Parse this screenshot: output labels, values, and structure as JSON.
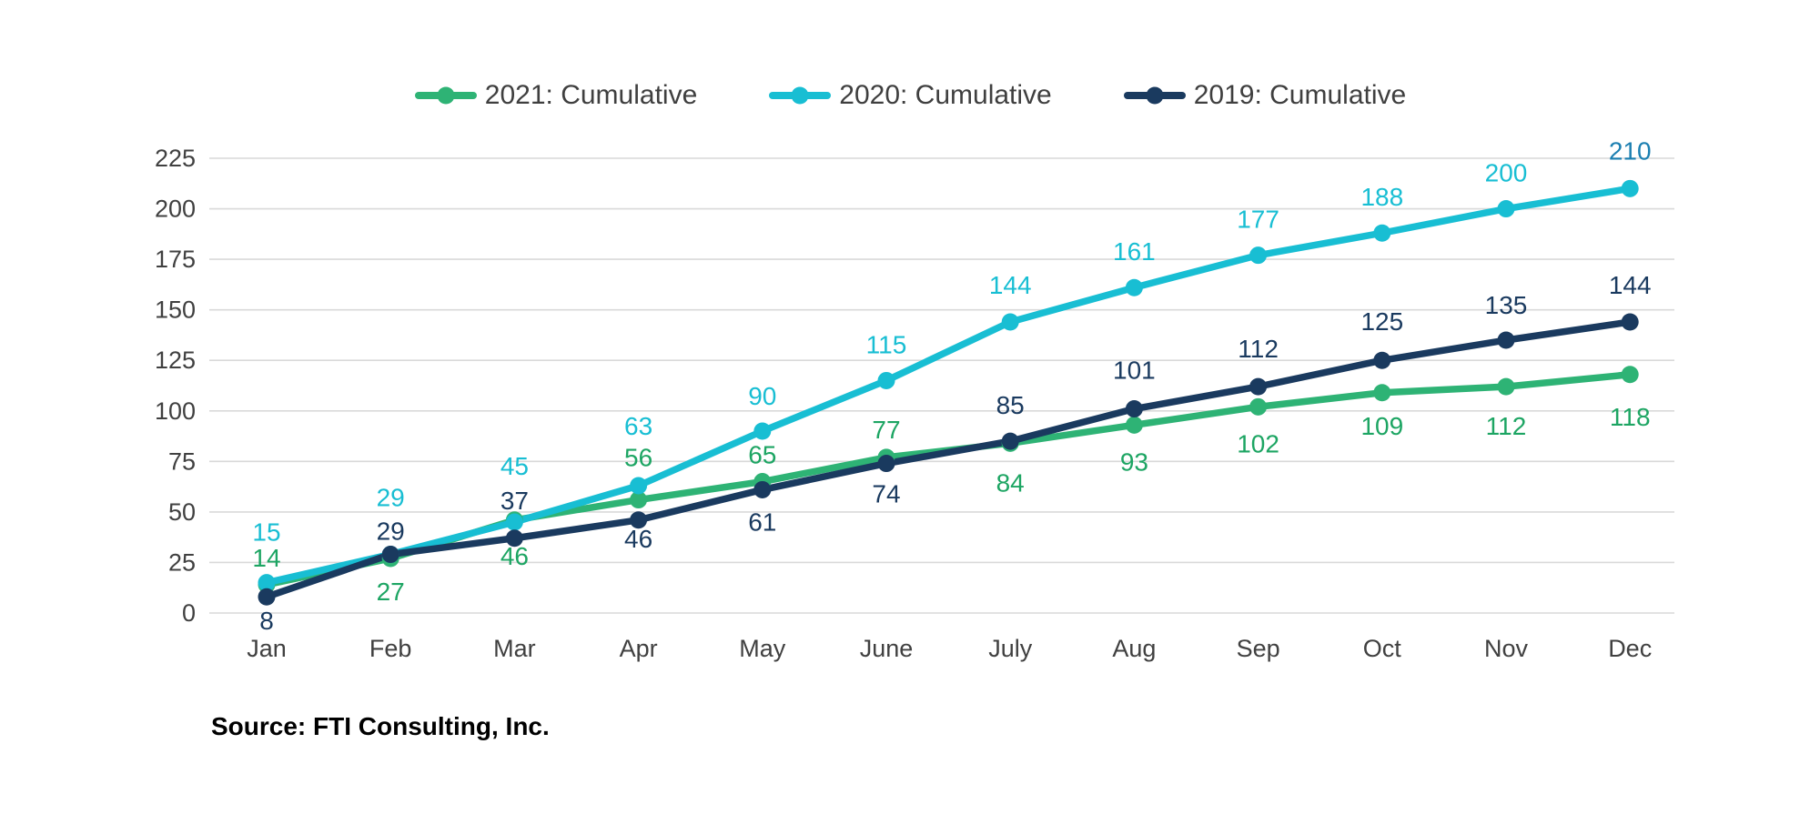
{
  "source_text": "Source: FTI Consulting, Inc.",
  "colors": {
    "background": "#FFFFFF",
    "grid": "#D9D9D9",
    "axis_text": "#404040",
    "legend_text": "#3F3F3F",
    "green_series": "#2EB375",
    "cyan_series": "#18BED3",
    "navy_series": "#1A3A5F",
    "cyan_last_label": "#1B7FB1"
  },
  "chart_data": {
    "type": "line",
    "title": "",
    "xlabel": "",
    "ylabel": "",
    "grid": true,
    "legend_position": "top",
    "categories": [
      "Jan",
      "Feb",
      "Mar",
      "Apr",
      "May",
      "June",
      "July",
      "Aug",
      "Sep",
      "Oct",
      "Nov",
      "Dec"
    ],
    "y_axis": {
      "min": 0,
      "max": 225,
      "step": 25,
      "ticks": [
        0,
        25,
        50,
        75,
        100,
        125,
        150,
        175,
        200,
        225
      ]
    },
    "series": [
      {
        "name": "2021: Cumulative",
        "color": "#2EB375",
        "values": [
          14,
          27,
          46,
          56,
          65,
          77,
          84,
          93,
          102,
          109,
          112,
          118
        ],
        "label_colors": [
          "#1DA563",
          "#1DA563",
          "#1DA563",
          "#1DA563",
          "#1DA563",
          "#1DA563",
          "#1DA563",
          "#1DA563",
          "#1DA563",
          "#1DA563",
          "#1DA563",
          "#1DA563"
        ],
        "label_dy": [
          -20,
          46,
          49,
          -37,
          -20,
          -21,
          53,
          50,
          50,
          46,
          53,
          56
        ]
      },
      {
        "name": "2020: Cumulative",
        "color": "#18BED3",
        "values": [
          15,
          29,
          45,
          63,
          90,
          115,
          144,
          161,
          177,
          188,
          200,
          210
        ],
        "label_colors": [
          "#18BED3",
          "#18BED3",
          "#18BED3",
          "#18BED3",
          "#18BED3",
          "#18BED3",
          "#18BED3",
          "#18BED3",
          "#18BED3",
          "#18BED3",
          "#18BED3",
          "#1B7FB1"
        ],
        "label_dy": [
          -46,
          -53,
          -52,
          -56,
          -29,
          -30,
          -31,
          -30,
          -30,
          -30,
          -30,
          -32
        ]
      },
      {
        "name": "2019: Cumulative",
        "color": "#1A3A5F",
        "values": [
          8,
          29,
          37,
          46,
          61,
          74,
          85,
          101,
          112,
          125,
          135,
          144
        ],
        "label_colors": [
          "#1A3A5F",
          "#1A3A5F",
          "#1A3A5F",
          "#1A3A5F",
          "#1A3A5F",
          "#1A3A5F",
          "#1A3A5F",
          "#1A3A5F",
          "#1A3A5F",
          "#1A3A5F",
          "#1A3A5F",
          "#1A3A5F"
        ],
        "label_dy": [
          36,
          -16,
          -32,
          30,
          45,
          43,
          -30,
          -33,
          -32,
          -33,
          -29,
          -31
        ]
      }
    ]
  }
}
